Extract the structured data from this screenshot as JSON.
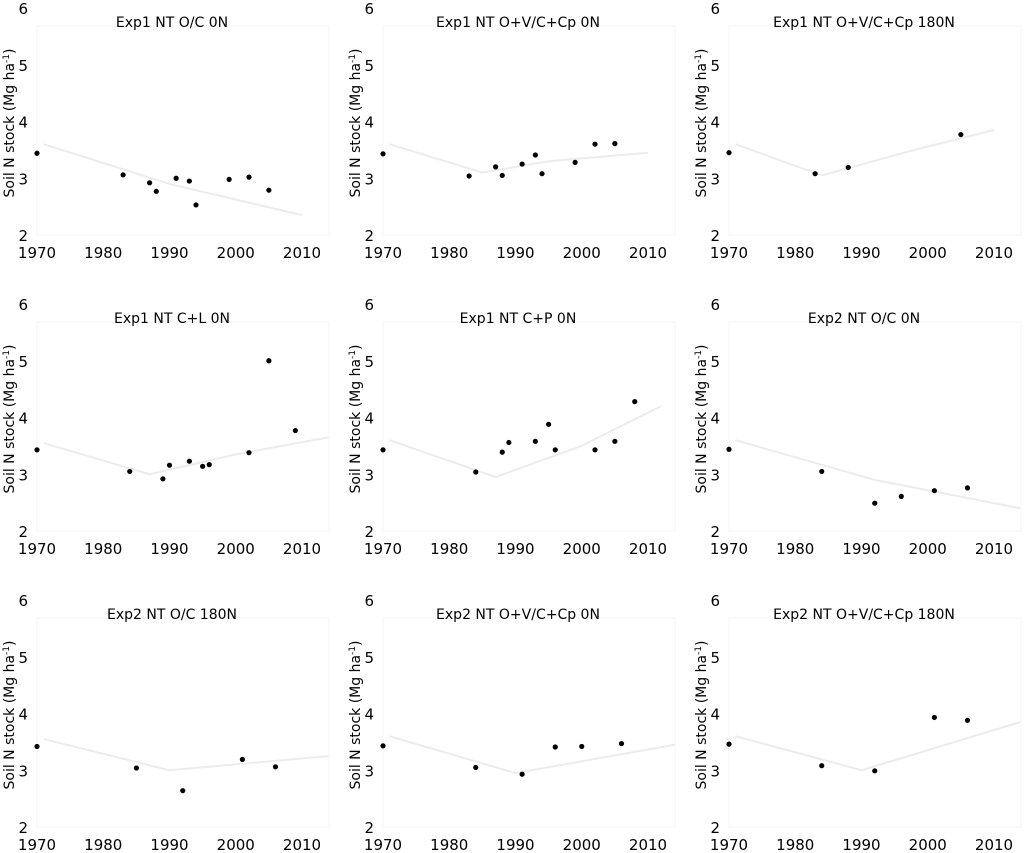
{
  "chart_data": [
    {
      "type": "scatter",
      "title": "Exp1 NT O/C 0N",
      "ylabel": "Soil N stock (Mg ha-1)",
      "xlabel": "",
      "xlim": [
        1970,
        2014
      ],
      "ylim": [
        2,
        6
      ],
      "x": [
        1970,
        1983,
        1987,
        1988,
        1991,
        1993,
        1994,
        1999,
        2002,
        2005
      ],
      "y": [
        3.44,
        3.06,
        2.92,
        2.77,
        3.0,
        2.95,
        2.53,
        2.98,
        3.02,
        2.79
      ],
      "trend": {
        "x": [
          1971,
          1990,
          2010
        ],
        "y": [
          3.6,
          2.9,
          2.35
        ]
      }
    },
    {
      "type": "scatter",
      "title": "Exp1 NT O+V/C+Cp 0N",
      "ylabel": "Soil N stock (Mg ha-1)",
      "xlabel": "",
      "xlim": [
        1970,
        2014
      ],
      "ylim": [
        2,
        6
      ],
      "x": [
        1970,
        1983,
        1987,
        1988,
        1991,
        1993,
        1994,
        1999,
        2002,
        2005
      ],
      "y": [
        3.43,
        3.04,
        3.2,
        3.05,
        3.25,
        3.41,
        3.08,
        3.28,
        3.6,
        3.61
      ],
      "trend": {
        "x": [
          1971,
          1985,
          1995,
          2010
        ],
        "y": [
          3.6,
          3.1,
          3.3,
          3.45
        ]
      }
    },
    {
      "type": "scatter",
      "title": "Exp1 NT O+V/C+Cp 180N",
      "ylabel": "Soil N stock (Mg ha-1)",
      "xlabel": "",
      "xlim": [
        1970,
        2014
      ],
      "ylim": [
        2,
        6
      ],
      "x": [
        1970,
        1983,
        1988,
        2005
      ],
      "y": [
        3.45,
        3.08,
        3.19,
        3.77
      ],
      "trend": {
        "x": [
          1971,
          1984,
          1998,
          2010
        ],
        "y": [
          3.6,
          3.05,
          3.5,
          3.85
        ]
      }
    },
    {
      "type": "scatter",
      "title": "Exp1 NT C+L 0N",
      "ylabel": "Soil N stock (Mg ha-1)",
      "xlabel": "",
      "xlim": [
        1970,
        2014
      ],
      "ylim": [
        2,
        6
      ],
      "x": [
        1970,
        1984,
        1989,
        1990,
        1993,
        1995,
        1996,
        2002,
        2005,
        2009
      ],
      "y": [
        3.43,
        3.05,
        2.92,
        3.16,
        3.23,
        3.14,
        3.17,
        3.38,
        5.0,
        3.77
      ],
      "trend": {
        "x": [
          1971,
          1987,
          2000,
          2014
        ],
        "y": [
          3.55,
          3.0,
          3.35,
          3.65
        ]
      }
    },
    {
      "type": "scatter",
      "title": "Exp1 NT C+P 0N",
      "ylabel": "Soil N stock (Mg ha-1)",
      "xlabel": "",
      "xlim": [
        1970,
        2014
      ],
      "ylim": [
        2,
        6
      ],
      "x": [
        1970,
        1984,
        1988,
        1989,
        1993,
        1995,
        1996,
        2002,
        2005,
        2008
      ],
      "y": [
        3.43,
        3.04,
        3.39,
        3.56,
        3.58,
        3.88,
        3.43,
        3.43,
        3.58,
        4.28
      ],
      "trend": {
        "x": [
          1971,
          1987,
          2000,
          2012
        ],
        "y": [
          3.6,
          2.95,
          3.5,
          4.2
        ]
      }
    },
    {
      "type": "scatter",
      "title": "Exp2 NT O/C 0N",
      "ylabel": "Soil N stock (Mg ha-1)",
      "xlabel": "",
      "xlim": [
        1970,
        2014
      ],
      "ylim": [
        2,
        6
      ],
      "x": [
        1970,
        1984,
        1992,
        1996,
        2001,
        2006
      ],
      "y": [
        3.44,
        3.05,
        2.49,
        2.61,
        2.71,
        2.76
      ],
      "trend": {
        "x": [
          1971,
          1992,
          2014
        ],
        "y": [
          3.6,
          2.9,
          2.4
        ]
      }
    },
    {
      "type": "scatter",
      "title": "Exp2 NT O/C 180N",
      "ylabel": "Soil N stock (Mg ha-1)",
      "xlabel": "",
      "xlim": [
        1970,
        2014
      ],
      "ylim": [
        2,
        6
      ],
      "x": [
        1970,
        1985,
        1992,
        2001,
        2006
      ],
      "y": [
        3.42,
        3.04,
        2.64,
        3.19,
        3.06
      ],
      "trend": {
        "x": [
          1971,
          1990,
          2014
        ],
        "y": [
          3.55,
          3.0,
          3.25
        ]
      }
    },
    {
      "type": "scatter",
      "title": "Exp2 NT O+V/C+Cp 0N",
      "ylabel": "Soil N stock (Mg ha-1)",
      "xlabel": "",
      "xlim": [
        1970,
        2014
      ],
      "ylim": [
        2,
        6
      ],
      "x": [
        1970,
        1984,
        1991,
        1996,
        2000,
        2006
      ],
      "y": [
        3.43,
        3.05,
        2.93,
        3.41,
        3.42,
        3.47
      ],
      "trend": {
        "x": [
          1971,
          1990,
          2014
        ],
        "y": [
          3.6,
          2.95,
          3.45
        ]
      }
    },
    {
      "type": "scatter",
      "title": "Exp2 NT O+V/C+Cp 180N",
      "ylabel": "Soil N stock (Mg ha-1)",
      "xlabel": "",
      "xlim": [
        1970,
        2014
      ],
      "ylim": [
        2,
        6
      ],
      "x": [
        1970,
        1984,
        1992,
        2001,
        2006
      ],
      "y": [
        3.46,
        3.08,
        2.99,
        3.93,
        3.88
      ],
      "trend": {
        "x": [
          1971,
          1990,
          2014
        ],
        "y": [
          3.6,
          3.0,
          3.85
        ]
      }
    }
  ],
  "axes": {
    "xticks": [
      1970,
      1980,
      1990,
      2000,
      2010
    ],
    "yticks": [
      2,
      3,
      4,
      5,
      6
    ],
    "ylabel_main": "Soil N stock (Mg ha",
    "ylabel_sup": "-1",
    "ylabel_end": ")"
  }
}
